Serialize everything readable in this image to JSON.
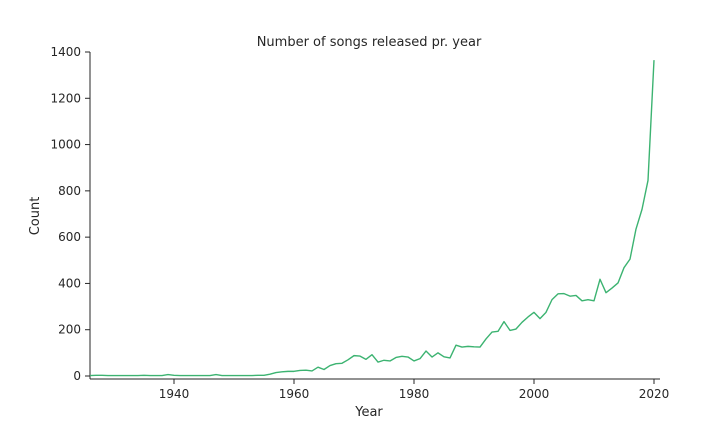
{
  "chart_data": {
    "type": "line",
    "title": "Number of songs released pr. year",
    "xlabel": "Year",
    "ylabel": "Count",
    "xlim": [
      1926,
      2021
    ],
    "ylim": [
      0,
      1400
    ],
    "xticks": [
      1940,
      1960,
      1980,
      2000,
      2020
    ],
    "yticks": [
      0,
      200,
      400,
      600,
      800,
      1000,
      1200,
      1400
    ],
    "grid": false,
    "line_color": "#3cb371",
    "series": [
      {
        "x": [
          1926,
          1927,
          1928,
          1929,
          1930,
          1931,
          1932,
          1933,
          1934,
          1935,
          1936,
          1937,
          1938,
          1939,
          1940,
          1941,
          1942,
          1943,
          1944,
          1945,
          1946,
          1947,
          1948,
          1949,
          1950,
          1951,
          1952,
          1953,
          1954,
          1955,
          1956,
          1957,
          1958,
          1959,
          1960,
          1961,
          1962,
          1963,
          1964,
          1965,
          1966,
          1967,
          1968,
          1969,
          1970,
          1971,
          1972,
          1973,
          1974,
          1975,
          1976,
          1977,
          1978,
          1979,
          1980,
          1981,
          1982,
          1983,
          1984,
          1985,
          1986,
          1987,
          1988,
          1989,
          1990,
          1991,
          1992,
          1993,
          1994,
          1995,
          1996,
          1997,
          1998,
          1999,
          2000,
          2001,
          2002,
          2003,
          2004,
          2005,
          2006,
          2007,
          2008,
          2009,
          2010,
          2011,
          2012,
          2013,
          2014,
          2015,
          2016,
          2017,
          2018,
          2019,
          2020
        ],
        "values": [
          2,
          3,
          3,
          2,
          2,
          2,
          2,
          2,
          2,
          3,
          2,
          2,
          2,
          6,
          3,
          2,
          2,
          2,
          2,
          2,
          2,
          6,
          2,
          2,
          2,
          2,
          2,
          2,
          3,
          3,
          8,
          15,
          18,
          20,
          20,
          24,
          25,
          22,
          38,
          28,
          45,
          53,
          55,
          70,
          88,
          86,
          72,
          92,
          60,
          68,
          65,
          80,
          85,
          82,
          65,
          75,
          108,
          82,
          100,
          83,
          78,
          133,
          125,
          128,
          126,
          125,
          160,
          190,
          193,
          235,
          197,
          203,
          232,
          255,
          275,
          248,
          275,
          330,
          355,
          356,
          345,
          348,
          325,
          330,
          325,
          418,
          360,
          380,
          402,
          468,
          505,
          635,
          720,
          845,
          1365
        ]
      }
    ]
  }
}
